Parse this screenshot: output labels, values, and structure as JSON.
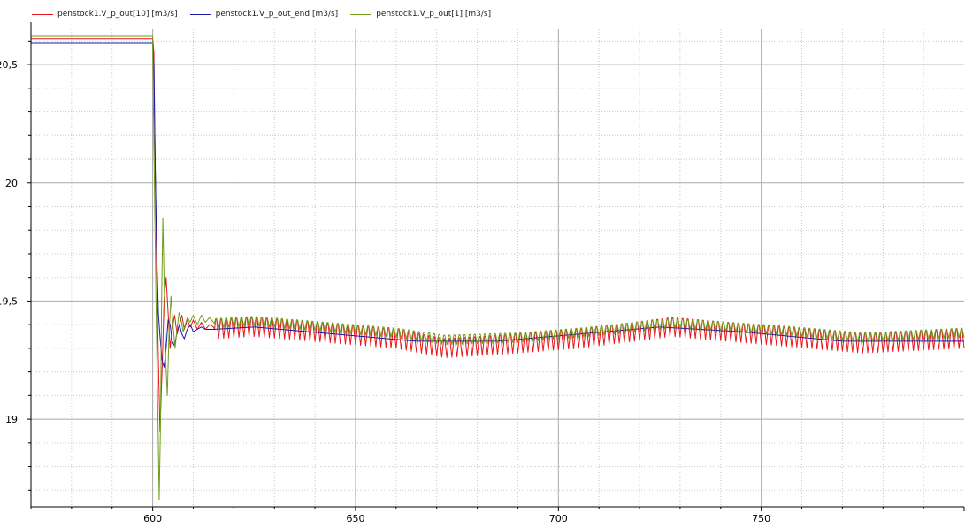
{
  "chart_data": {
    "type": "line",
    "title": "",
    "xlabel": "",
    "ylabel": "",
    "xlim": [
      570,
      800
    ],
    "ylim": [
      18.63,
      20.65
    ],
    "grid": true,
    "legend_position": "top-left",
    "x_ticks": [
      600,
      650,
      700,
      750
    ],
    "x_tick_labels": [
      "600",
      "650",
      "700",
      "750"
    ],
    "y_ticks": [
      19,
      19.5,
      20,
      20.5
    ],
    "y_tick_labels": [
      "19",
      "19,5",
      "20",
      "20,5"
    ],
    "series": [
      {
        "name": "penstock1.V_p_out[10] [m3/s]",
        "color": "#e8161b",
        "pre_value": 20.61,
        "settle_value": 19.37,
        "base_points": [
          [
            615,
            19.39
          ],
          [
            625,
            19.4
          ],
          [
            660,
            19.35
          ],
          [
            672,
            19.31
          ],
          [
            690,
            19.33
          ],
          [
            705,
            19.35
          ],
          [
            728,
            19.4
          ],
          [
            755,
            19.36
          ],
          [
            775,
            19.33
          ],
          [
            800,
            19.35
          ]
        ],
        "osc_amplitude": 0.05,
        "osc_period": 1.25,
        "osc_start": 615,
        "transient": [
          [
            600,
            20.61
          ],
          [
            600.3,
            20.55
          ],
          [
            600.6,
            20.1
          ],
          [
            601,
            19.6
          ],
          [
            601.4,
            19.25
          ],
          [
            601.8,
            18.95
          ],
          [
            602.3,
            19.2
          ],
          [
            602.8,
            19.5
          ],
          [
            603.3,
            19.6
          ],
          [
            603.8,
            19.45
          ],
          [
            604.3,
            19.3
          ],
          [
            604.8,
            19.38
          ],
          [
            605.4,
            19.44
          ],
          [
            606,
            19.36
          ],
          [
            606.6,
            19.4
          ],
          [
            607.2,
            19.44
          ],
          [
            607.8,
            19.38
          ],
          [
            608.5,
            19.42
          ],
          [
            609.3,
            19.39
          ],
          [
            610,
            19.42
          ],
          [
            611,
            19.38
          ],
          [
            612,
            19.41
          ],
          [
            613,
            19.38
          ],
          [
            614,
            19.4
          ],
          [
            615,
            19.39
          ]
        ]
      },
      {
        "name": "penstock1.V_p_out_end [m3/s]",
        "color": "#1a1aa6",
        "pre_value": 20.59,
        "settle_value": 19.37,
        "base_points": [
          [
            615,
            19.38
          ],
          [
            625,
            19.39
          ],
          [
            645,
            19.36
          ],
          [
            665,
            19.33
          ],
          [
            685,
            19.33
          ],
          [
            705,
            19.36
          ],
          [
            725,
            19.39
          ],
          [
            745,
            19.37
          ],
          [
            770,
            19.33
          ],
          [
            800,
            19.33
          ]
        ],
        "osc_amplitude": 0.0,
        "osc_period": 1.25,
        "osc_start": 615,
        "transient": [
          [
            600,
            20.59
          ],
          [
            600.3,
            20.5
          ],
          [
            600.6,
            20.1
          ],
          [
            601,
            19.7
          ],
          [
            601.4,
            19.45
          ],
          [
            601.8,
            19.35
          ],
          [
            602.3,
            19.25
          ],
          [
            602.8,
            19.22
          ],
          [
            603.3,
            19.3
          ],
          [
            603.8,
            19.42
          ],
          [
            604.3,
            19.4
          ],
          [
            604.8,
            19.33
          ],
          [
            605.4,
            19.31
          ],
          [
            606,
            19.37
          ],
          [
            606.6,
            19.4
          ],
          [
            607.2,
            19.36
          ],
          [
            607.8,
            19.34
          ],
          [
            608.5,
            19.38
          ],
          [
            609.3,
            19.4
          ],
          [
            610,
            19.37
          ],
          [
            611,
            19.38
          ],
          [
            612,
            19.39
          ],
          [
            613,
            19.38
          ],
          [
            615,
            19.38
          ]
        ]
      },
      {
        "name": "penstock1.V_p_out[1] [m3/s]",
        "color": "#6f9c1b",
        "pre_value": 20.62,
        "settle_value": 19.38,
        "base_points": [
          [
            615,
            19.41
          ],
          [
            625,
            19.42
          ],
          [
            660,
            19.37
          ],
          [
            672,
            19.34
          ],
          [
            690,
            19.35
          ],
          [
            705,
            19.37
          ],
          [
            728,
            19.41
          ],
          [
            755,
            19.38
          ],
          [
            775,
            19.35
          ],
          [
            800,
            19.37
          ]
        ],
        "osc_amplitude": 0.025,
        "osc_period": 1.25,
        "osc_start": 615,
        "transient": [
          [
            600,
            20.62
          ],
          [
            600.2,
            20.3
          ],
          [
            600.5,
            19.9
          ],
          [
            600.9,
            19.4
          ],
          [
            601.3,
            19.0
          ],
          [
            601.6,
            18.66
          ],
          [
            601.9,
            18.95
          ],
          [
            602.2,
            19.5
          ],
          [
            602.5,
            19.85
          ],
          [
            602.8,
            19.6
          ],
          [
            603.2,
            19.25
          ],
          [
            603.6,
            19.1
          ],
          [
            604,
            19.35
          ],
          [
            604.5,
            19.52
          ],
          [
            605,
            19.4
          ],
          [
            605.5,
            19.3
          ],
          [
            606,
            19.38
          ],
          [
            606.5,
            19.45
          ],
          [
            607,
            19.42
          ],
          [
            607.5,
            19.37
          ],
          [
            608,
            19.4
          ],
          [
            608.6,
            19.43
          ],
          [
            609.2,
            19.41
          ],
          [
            610,
            19.44
          ],
          [
            611,
            19.4
          ],
          [
            612,
            19.44
          ],
          [
            613,
            19.41
          ],
          [
            614,
            19.43
          ],
          [
            615,
            19.41
          ]
        ]
      }
    ]
  }
}
